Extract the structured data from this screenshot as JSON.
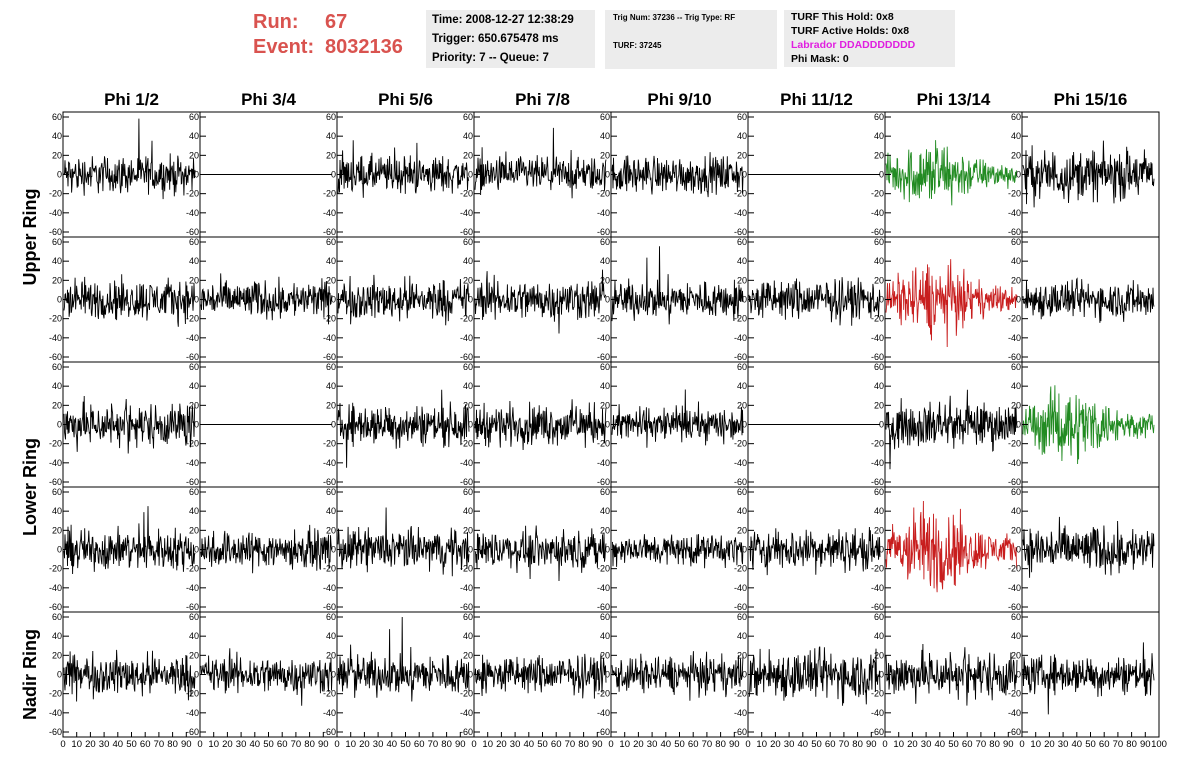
{
  "header": {
    "run_label": "Run:",
    "run_value": "67",
    "event_label": "Event:",
    "event_value": "8032136",
    "time": "Time: 2008-12-27 12:38:29",
    "trigger": "Trigger: 650.675478 ms",
    "priority": "Priority: 7 -- Queue: 7",
    "trig_num": "Trig Num: 37236 -- Trig Type: RF",
    "turf": "TURF: 37245",
    "turf_this_hold": "TURF This Hold: 0x8",
    "turf_active_holds": "TURF Active Holds: 0x8",
    "labrador": "Labrador DDADDDDDDD",
    "phi_mask": "Phi Mask: 0"
  },
  "colors": {
    "header_red": "#d9534f",
    "magenta": "#e020e0",
    "trace_black": "#000000",
    "trace_green": "#228b22",
    "trace_red": "#c81e1e"
  },
  "chart_data": {
    "type": "line",
    "columns": [
      "Phi 1/2",
      "Phi 3/4",
      "Phi 5/6",
      "Phi 7/8",
      "Phi 9/10",
      "Phi 11/12",
      "Phi 13/14",
      "Phi 15/16"
    ],
    "ring_labels": [
      {
        "name": "Upper Ring",
        "rows": [
          0,
          1
        ]
      },
      {
        "name": "Lower Ring",
        "rows": [
          2,
          3
        ]
      },
      {
        "name": "Nadir Ring",
        "rows": [
          4
        ]
      }
    ],
    "ylim": [
      -60,
      60
    ],
    "yticks": [
      -60,
      -40,
      -20,
      0,
      20,
      40,
      60
    ],
    "xlim": [
      0,
      100
    ],
    "xticks": [
      0,
      10,
      20,
      30,
      40,
      50,
      60,
      70,
      80,
      90
    ],
    "xtick_last": "100",
    "samples_per_trace": 260,
    "grid": false,
    "panels": [
      [
        {
          "amp": 12,
          "color": "black",
          "flat": false
        },
        {
          "amp": 0,
          "color": "black",
          "flat": true
        },
        {
          "amp": 12,
          "color": "black",
          "flat": false
        },
        {
          "amp": 11,
          "color": "black",
          "flat": false
        },
        {
          "amp": 12,
          "color": "black",
          "flat": false
        },
        {
          "amp": 0,
          "color": "black",
          "flat": true
        },
        {
          "amp": 14,
          "color": "green",
          "flat": false,
          "burst": true
        },
        {
          "amp": 16,
          "color": "black",
          "flat": false
        }
      ],
      [
        {
          "amp": 13,
          "color": "black",
          "flat": false
        },
        {
          "amp": 12,
          "color": "black",
          "flat": false
        },
        {
          "amp": 13,
          "color": "black",
          "flat": false
        },
        {
          "amp": 13,
          "color": "black",
          "flat": false
        },
        {
          "amp": 12,
          "color": "black",
          "flat": false
        },
        {
          "amp": 13,
          "color": "black",
          "flat": false
        },
        {
          "amp": 15,
          "color": "red",
          "flat": false,
          "burst": true
        },
        {
          "amp": 12,
          "color": "black",
          "flat": false
        }
      ],
      [
        {
          "amp": 14,
          "color": "black",
          "flat": false
        },
        {
          "amp": 0,
          "color": "black",
          "flat": true
        },
        {
          "amp": 13,
          "color": "black",
          "flat": false
        },
        {
          "amp": 13,
          "color": "black",
          "flat": false
        },
        {
          "amp": 11,
          "color": "black",
          "flat": false
        },
        {
          "amp": 0,
          "color": "black",
          "flat": true
        },
        {
          "amp": 14,
          "color": "black",
          "flat": false
        },
        {
          "amp": 15,
          "color": "green",
          "flat": false,
          "burst": true
        }
      ],
      [
        {
          "amp": 13,
          "color": "black",
          "flat": false
        },
        {
          "amp": 12,
          "color": "black",
          "flat": false
        },
        {
          "amp": 13,
          "color": "black",
          "flat": false
        },
        {
          "amp": 12,
          "color": "black",
          "flat": false
        },
        {
          "amp": 10,
          "color": "black",
          "flat": false
        },
        {
          "amp": 13,
          "color": "black",
          "flat": false
        },
        {
          "amp": 18,
          "color": "red",
          "flat": false,
          "burst": true
        },
        {
          "amp": 15,
          "color": "black",
          "flat": false
        }
      ],
      [
        {
          "amp": 13,
          "color": "black",
          "flat": false
        },
        {
          "amp": 12,
          "color": "black",
          "flat": false
        },
        {
          "amp": 13,
          "color": "black",
          "flat": false
        },
        {
          "amp": 12,
          "color": "black",
          "flat": false
        },
        {
          "amp": 12,
          "color": "black",
          "flat": false
        },
        {
          "amp": 16,
          "color": "black",
          "flat": false
        },
        {
          "amp": 15,
          "color": "black",
          "flat": false
        },
        {
          "amp": 12,
          "color": "black",
          "flat": false
        }
      ]
    ]
  }
}
